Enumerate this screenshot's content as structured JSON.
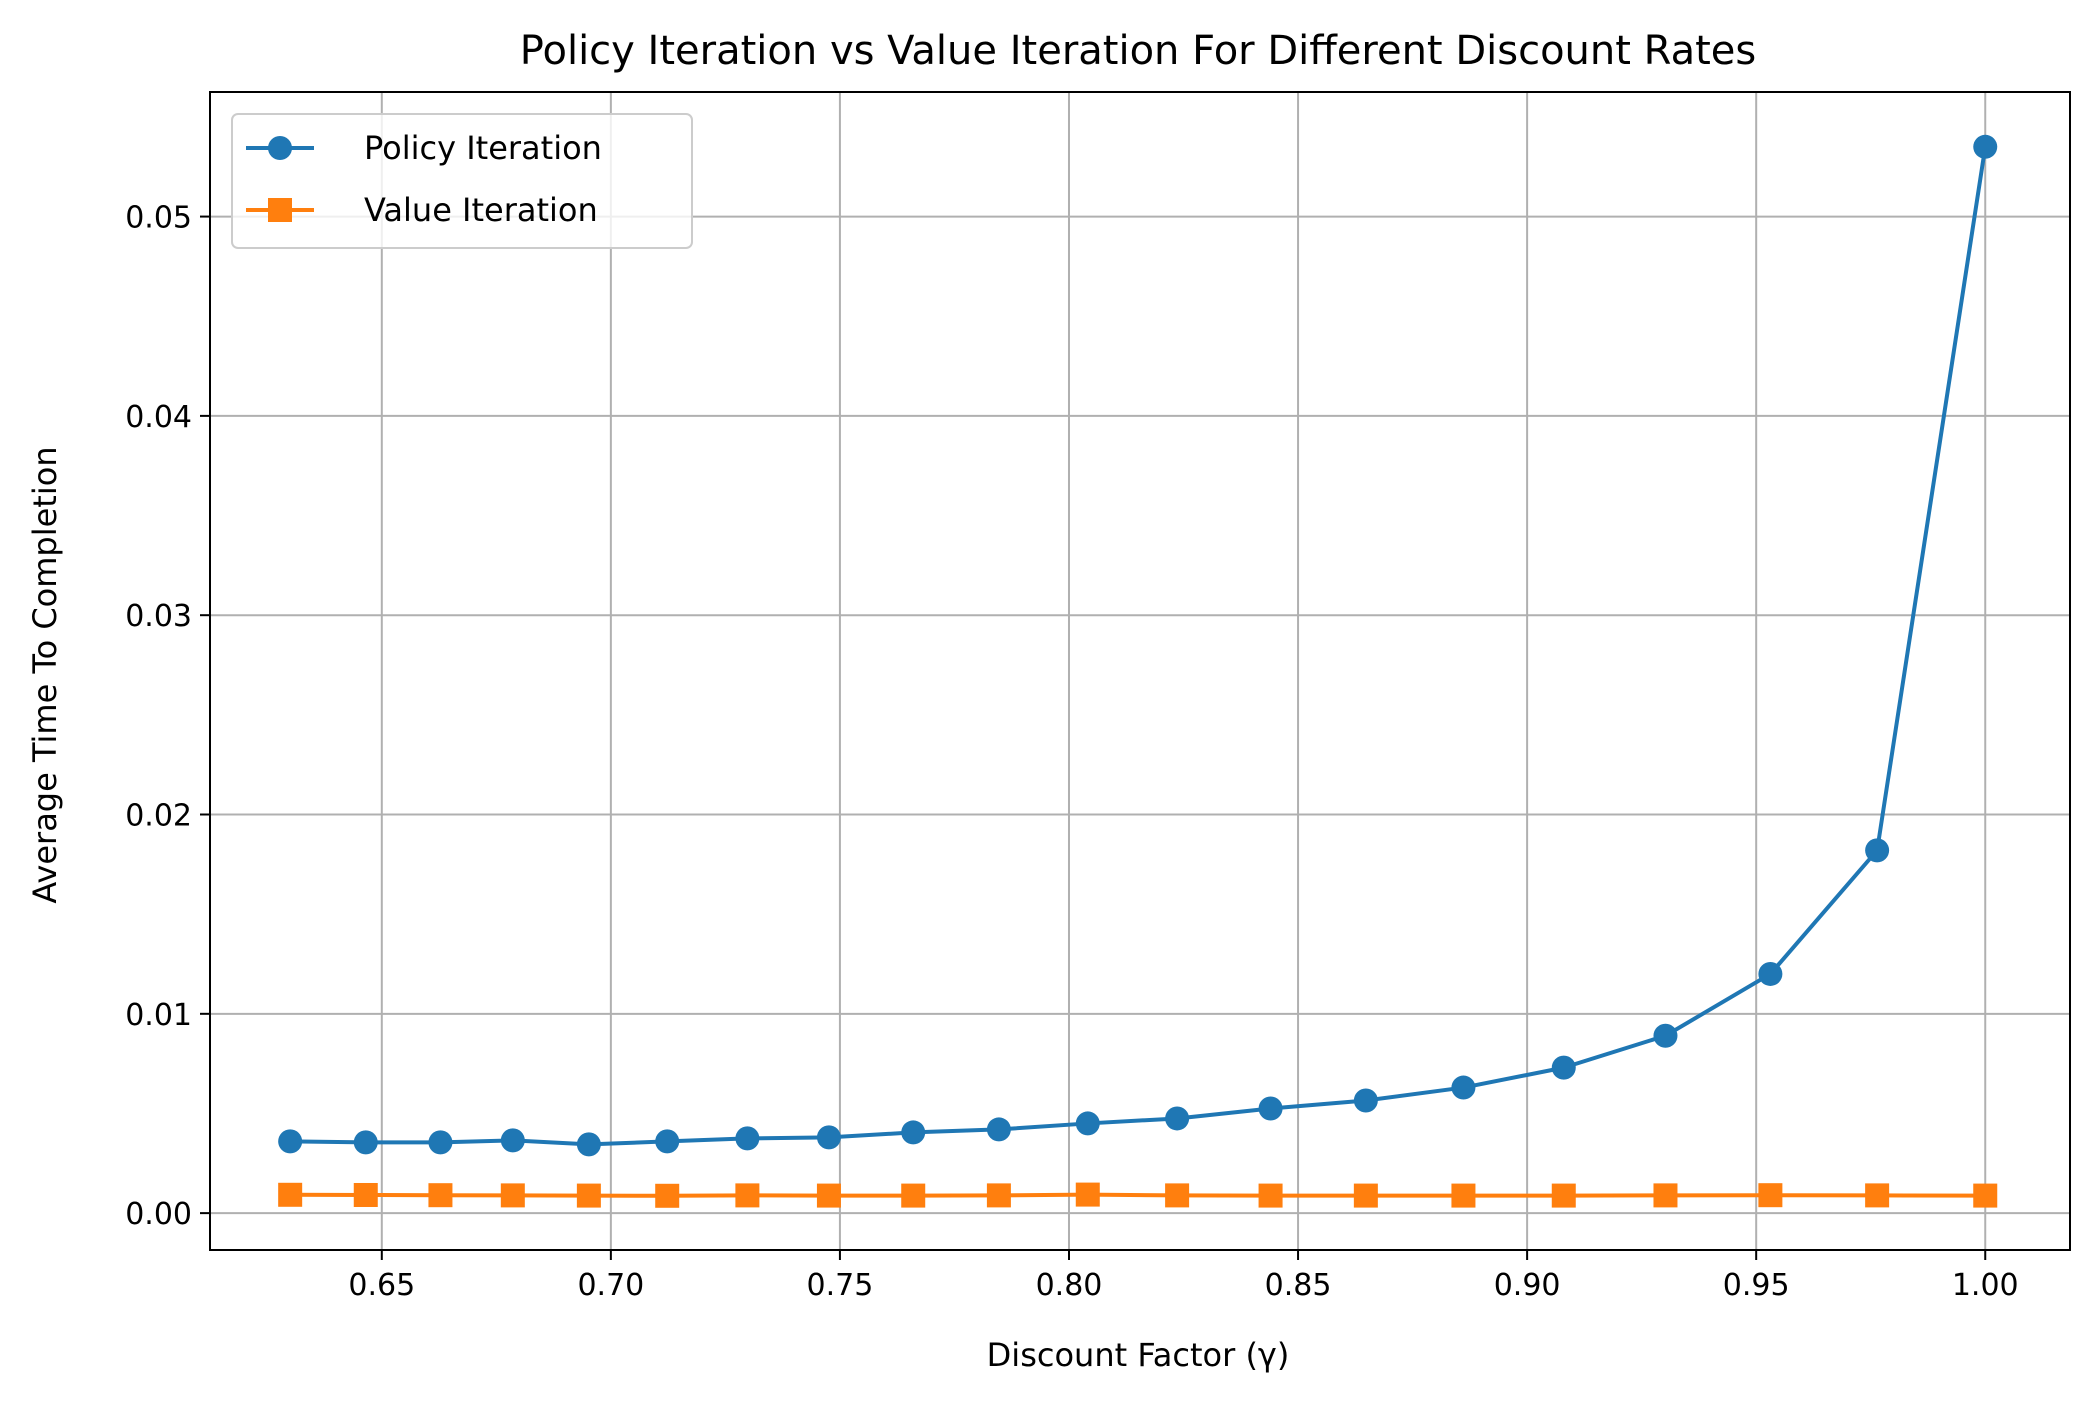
{
  "chart_data": {
    "type": "line",
    "title": "Policy Iteration vs Value Iteration For Different Discount Rates",
    "xlabel": "Discount Factor (γ)",
    "ylabel": "Average Time To Completion",
    "xlim": [
      0.6125,
      1.0185
    ],
    "ylim": [
      -0.00185,
      0.05625
    ],
    "x_ticks": [
      0.65,
      0.7,
      0.75,
      0.8,
      0.85,
      0.9,
      0.95,
      1.0
    ],
    "x_tick_labels": [
      "0.65",
      "0.70",
      "0.75",
      "0.80",
      "0.85",
      "0.90",
      "0.95",
      "1.00"
    ],
    "y_ticks": [
      0.0,
      0.01,
      0.02,
      0.03,
      0.04,
      0.05
    ],
    "y_tick_labels": [
      "0.00",
      "0.01",
      "0.02",
      "0.03",
      "0.04",
      "0.05"
    ],
    "grid": true,
    "legend_position": "top-left",
    "x": [
      0.63,
      0.6465,
      0.6628,
      0.6786,
      0.6952,
      0.7123,
      0.7298,
      0.7476,
      0.766,
      0.7847,
      0.8041,
      0.8236,
      0.844,
      0.8648,
      0.8861,
      0.908,
      0.9302,
      0.9531,
      0.9764,
      1.0
    ],
    "series": [
      {
        "name": "Policy Iteration",
        "color": "#1f77b4",
        "marker": "circle",
        "values": [
          0.0036,
          0.00355,
          0.00355,
          0.00365,
          0.00345,
          0.0036,
          0.00375,
          0.0038,
          0.00405,
          0.0042,
          0.0045,
          0.00475,
          0.00525,
          0.00565,
          0.0063,
          0.0073,
          0.0089,
          0.012,
          0.0182,
          0.0535
        ]
      },
      {
        "name": "Value Iteration",
        "color": "#ff7f0e",
        "marker": "square",
        "values": [
          0.00092,
          0.00091,
          0.0009,
          0.00089,
          0.00088,
          0.00087,
          0.00089,
          0.00088,
          0.00088,
          0.00089,
          0.00093,
          0.00089,
          0.00088,
          0.00088,
          0.00088,
          0.00088,
          0.00089,
          0.0009,
          0.00089,
          0.00088
        ]
      }
    ]
  }
}
